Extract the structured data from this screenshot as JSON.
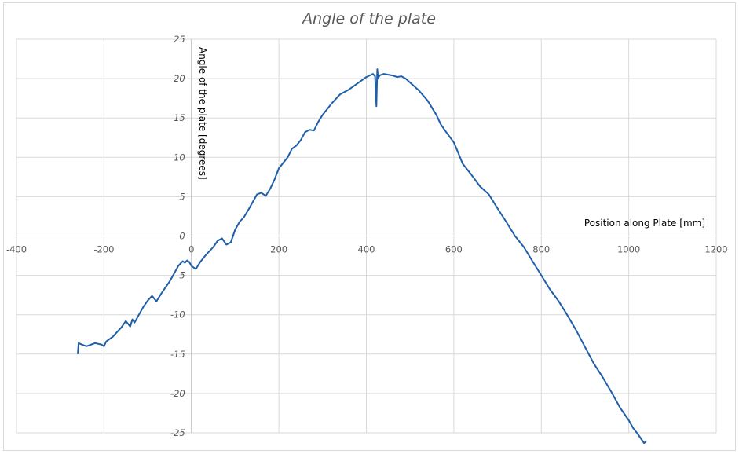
{
  "chart_data": {
    "type": "line",
    "title": "Angle of the plate",
    "xlabel": "Position along Plate [mm]",
    "ylabel": "Angle of the plate [degrees]",
    "xlim": [
      -400,
      1200
    ],
    "ylim": [
      -25,
      25
    ],
    "x_ticks": [
      "-400",
      "-200",
      "0",
      "200",
      "400",
      "600",
      "800",
      "1000",
      "1200"
    ],
    "y_ticks": [
      "25",
      "20",
      "15",
      "10",
      "5",
      "0",
      "-5",
      "-10",
      "-15",
      "-20",
      "-25"
    ],
    "grid": true,
    "legend": "none",
    "series": [
      {
        "color": "#1f5fa8",
        "x": [
          -260,
          -258,
          -250,
          -240,
          -220,
          -205,
          -200,
          -195,
          -190,
          -180,
          -170,
          -160,
          -150,
          -140,
          -135,
          -130,
          -120,
          -110,
          -100,
          -90,
          -80,
          -70,
          -60,
          -50,
          -40,
          -30,
          -20,
          -15,
          -10,
          -5,
          0,
          10,
          20,
          30,
          40,
          50,
          60,
          70,
          80,
          90,
          100,
          110,
          120,
          130,
          140,
          150,
          160,
          170,
          180,
          190,
          200,
          210,
          220,
          230,
          240,
          250,
          260,
          270,
          280,
          290,
          300,
          320,
          340,
          360,
          380,
          400,
          415,
          420,
          423,
          425,
          427,
          430,
          440,
          450,
          460,
          470,
          480,
          490,
          500,
          510,
          520,
          540,
          560,
          570,
          580,
          600,
          610,
          620,
          640,
          660,
          680,
          700,
          720,
          740,
          760,
          780,
          800,
          820,
          840,
          860,
          880,
          900,
          920,
          940,
          960,
          980,
          1000,
          1010,
          1020,
          1030,
          1035,
          1040
        ],
        "values": [
          -15,
          -13.6,
          -13.8,
          -14,
          -13.6,
          -13.8,
          -14,
          -13.4,
          -13.2,
          -12.8,
          -12.2,
          -11.6,
          -10.8,
          -11.5,
          -10.6,
          -11,
          -10,
          -9,
          -8.2,
          -7.6,
          -8.3,
          -7.4,
          -6.6,
          -5.8,
          -4.8,
          -3.8,
          -3.2,
          -3.4,
          -3.1,
          -3.3,
          -3.8,
          -4.2,
          -3.3,
          -2.6,
          -2,
          -1.4,
          -0.6,
          -0.3,
          -1.1,
          -0.8,
          0.8,
          1.8,
          2.4,
          3.3,
          4.3,
          5.3,
          5.5,
          5.1,
          6,
          7.2,
          8.6,
          9.3,
          10,
          11.1,
          11.5,
          12.2,
          13.2,
          13.5,
          13.4,
          14.5,
          15.4,
          16.8,
          18,
          18.6,
          19.4,
          20.2,
          20.6,
          20.3,
          16.5,
          21.2,
          20,
          20.4,
          20.6,
          20.5,
          20.4,
          20.2,
          20.3,
          20,
          19.5,
          19,
          18.5,
          17.2,
          15.4,
          14.2,
          13.4,
          11.9,
          10.6,
          9.2,
          7.8,
          6.3,
          5.3,
          3.5,
          1.8,
          0,
          -1.4,
          -3.2,
          -5,
          -6.8,
          -8.3,
          -10.1,
          -12,
          -14.1,
          -16.2,
          -17.9,
          -19.8,
          -21.8,
          -23.4,
          -24.4,
          -25.1,
          -25.9,
          -26.3,
          -26.1
        ]
      }
    ]
  }
}
